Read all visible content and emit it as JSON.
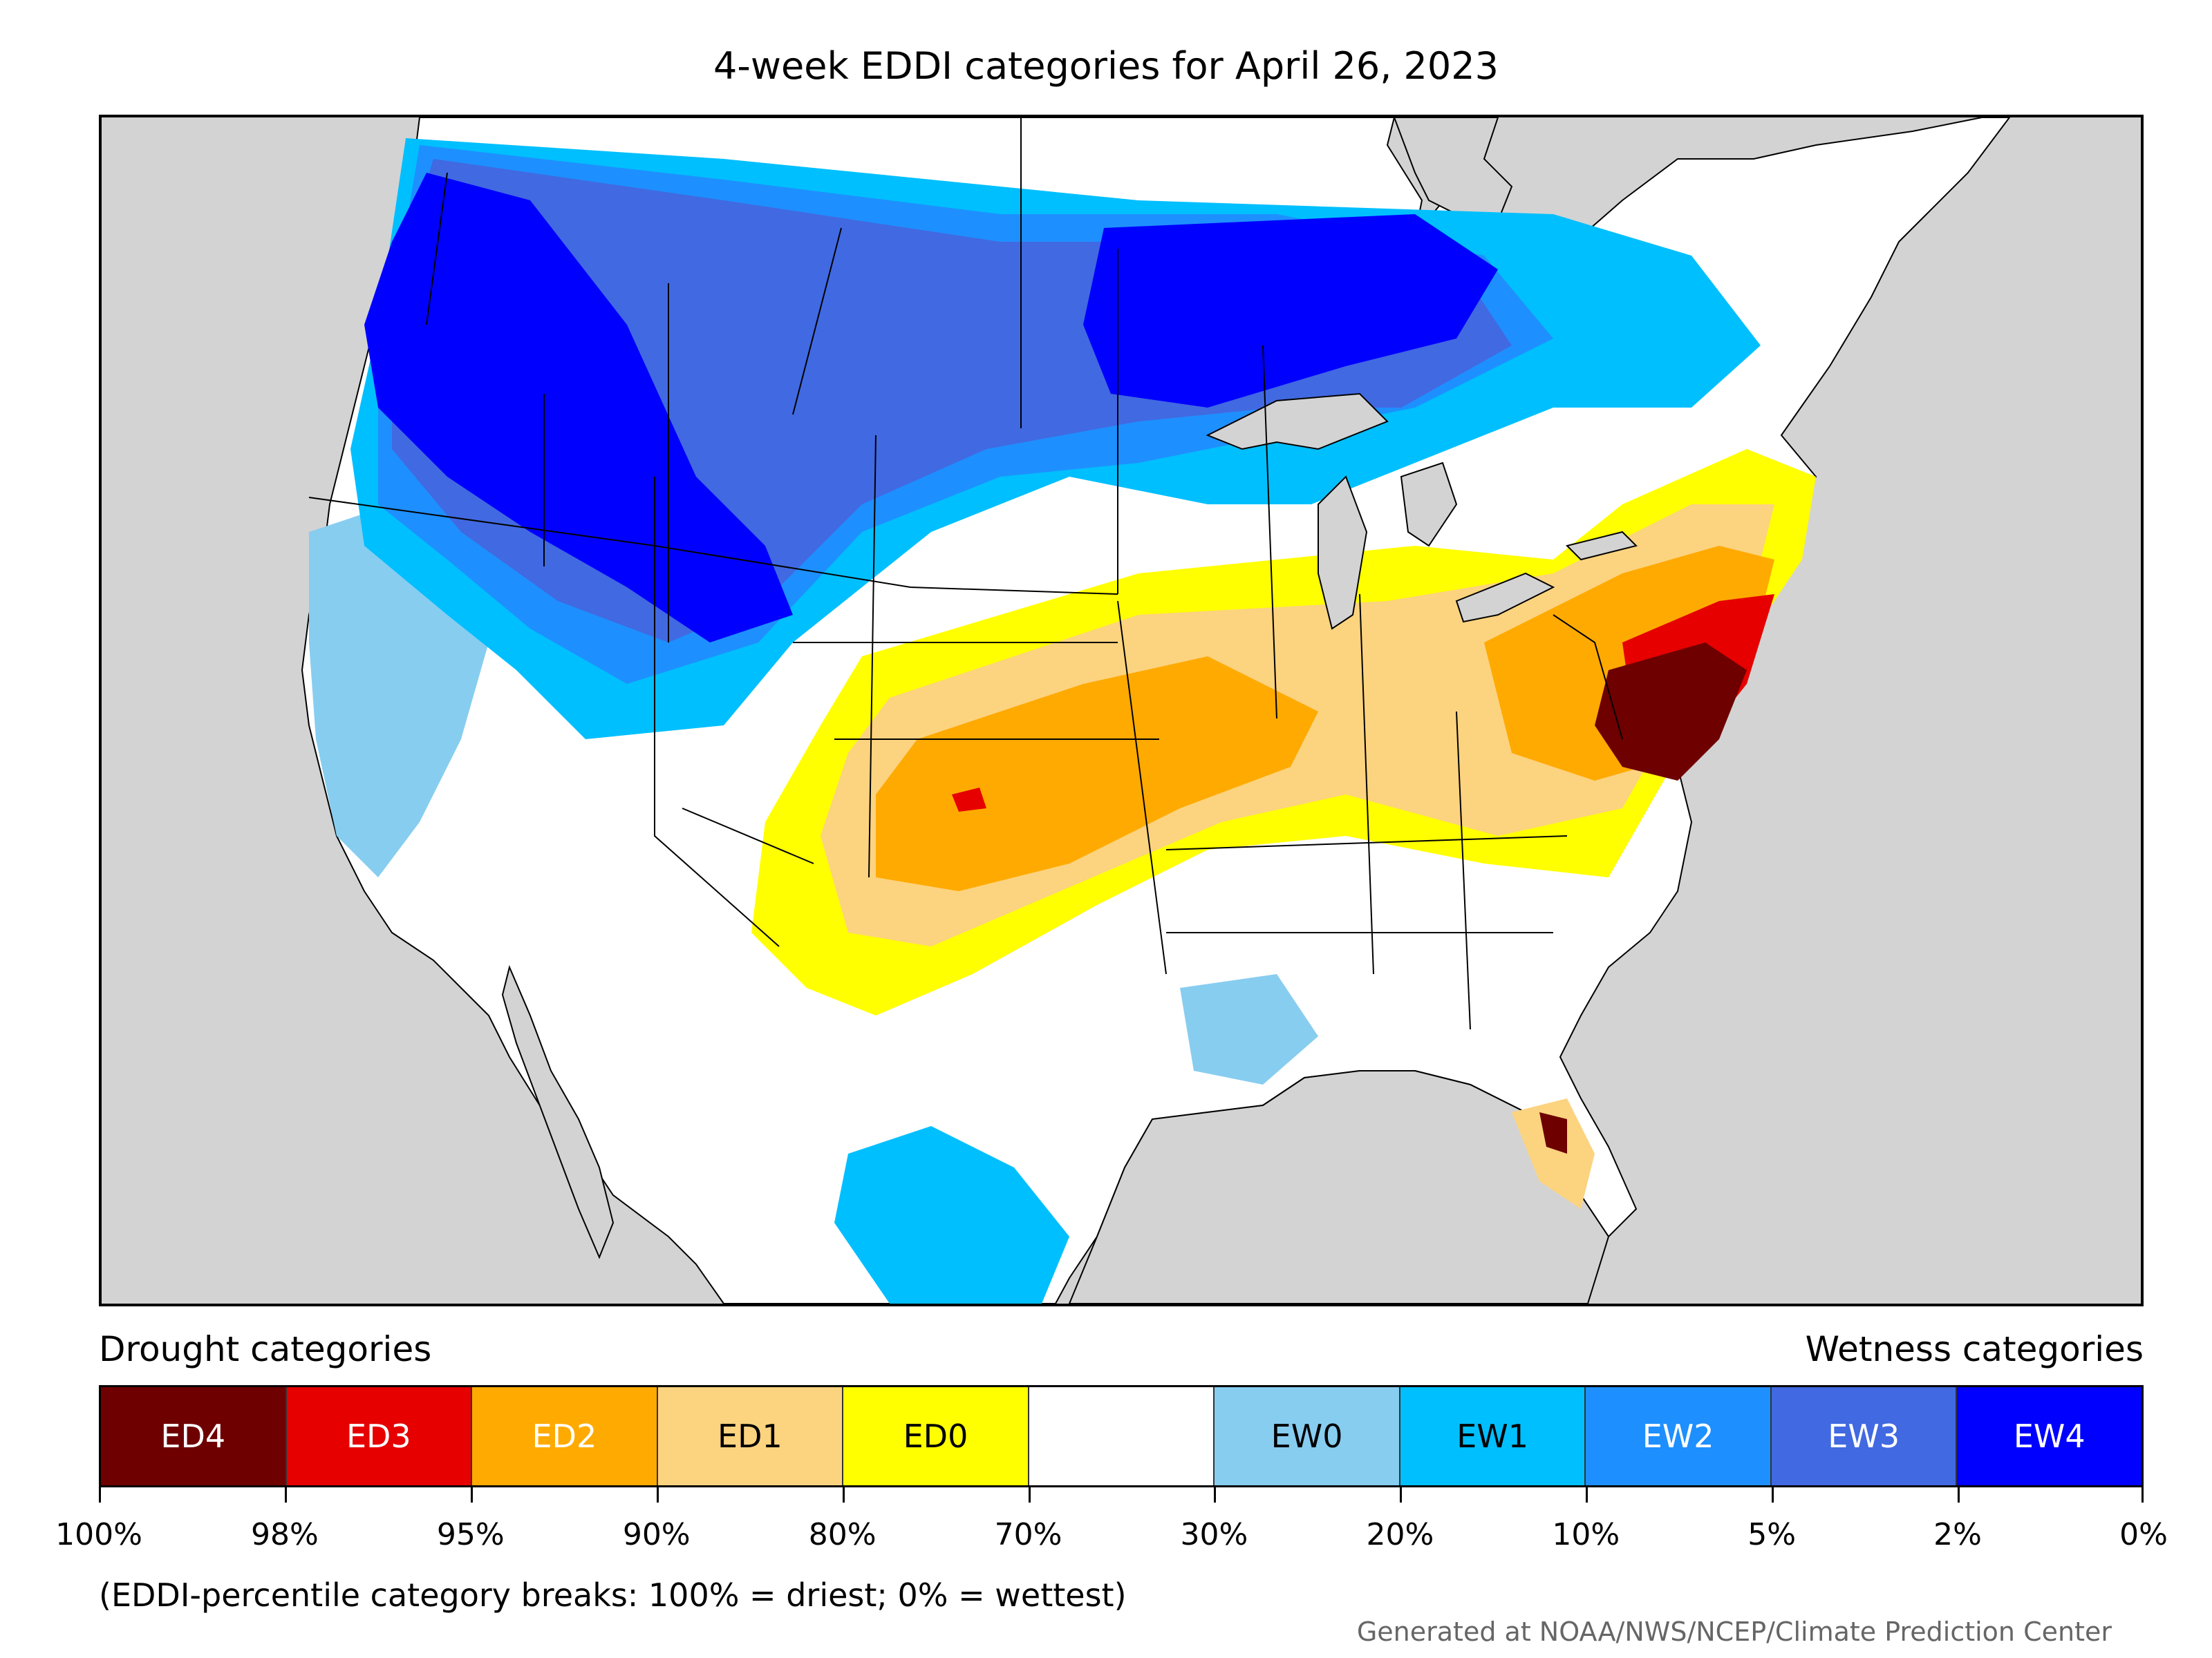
{
  "title": "4-week EDDI categories for April 26, 2023",
  "legend": {
    "left_heading": "Drought categories",
    "right_heading": "Wetness categories",
    "categories": [
      {
        "label": "ED4",
        "color": "#6e0000",
        "text_color": "#ffffff"
      },
      {
        "label": "ED3",
        "color": "#e60000",
        "text_color": "#ffffff"
      },
      {
        "label": "ED2",
        "color": "#ffaa00",
        "text_color": "#ffffff"
      },
      {
        "label": "ED1",
        "color": "#fcd37f",
        "text_color": "#000000"
      },
      {
        "label": "ED0",
        "color": "#ffff00",
        "text_color": "#000000"
      },
      {
        "label": "",
        "color": "#ffffff",
        "text_color": "#000000"
      },
      {
        "label": "EW0",
        "color": "#87cdf0",
        "text_color": "#000000"
      },
      {
        "label": "EW1",
        "color": "#00bfff",
        "text_color": "#000000"
      },
      {
        "label": "EW2",
        "color": "#1e8fff",
        "text_color": "#ffffff"
      },
      {
        "label": "EW3",
        "color": "#4169e1",
        "text_color": "#ffffff"
      },
      {
        "label": "EW4",
        "color": "#0000ff",
        "text_color": "#ffffff"
      }
    ],
    "tick_labels": [
      "100%",
      "98%",
      "95%",
      "90%",
      "80%",
      "70%",
      "30%",
      "20%",
      "10%",
      "5%",
      "2%",
      "0%"
    ]
  },
  "note": "(EDDI-percentile category breaks: 100% = driest; 0% = wettest)",
  "credit": "Generated at NOAA/NWS/NCEP/Climate Prediction Center"
}
